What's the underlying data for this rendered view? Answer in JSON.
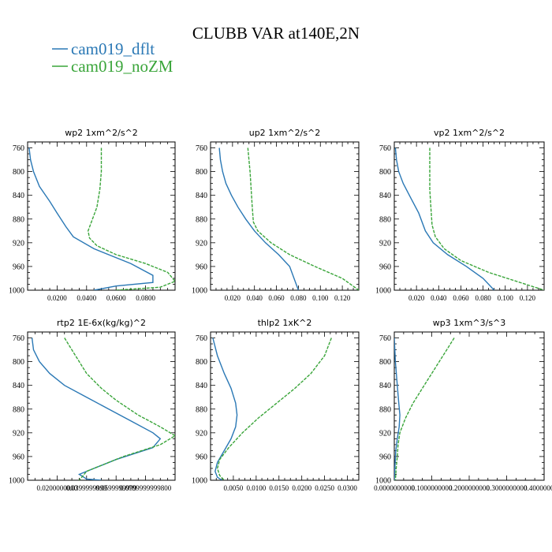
{
  "figure": {
    "title": "CLUBB VAR at140E,2N"
  },
  "legend": [
    {
      "label": "cam019_dflt",
      "color": "#2a78b5",
      "dash": false
    },
    {
      "label": "cam019_noZM",
      "color": "#3aa53a",
      "dash": true
    }
  ],
  "chart_data": [
    {
      "type": "line",
      "title": "wp2   1xm^2/s^2",
      "xlim": [
        0,
        0.1
      ],
      "ylim": [
        1000,
        750
      ],
      "xticks": [
        0.02,
        0.04,
        0.06,
        0.08
      ],
      "xtick_labels": [
        "0.0200",
        "0.0400",
        "0.0600",
        "0.0800"
      ],
      "yticks": [
        760,
        800,
        840,
        880,
        920,
        960,
        1000
      ],
      "series": [
        {
          "name": "cam019_dflt",
          "color": "#2a78b5",
          "dash": false,
          "x": [
            0.001,
            0.002,
            0.004,
            0.008,
            0.015,
            0.02,
            0.026,
            0.031,
            0.045,
            0.07,
            0.085,
            0.085,
            0.06,
            0.045
          ],
          "y": [
            760,
            780,
            800,
            825,
            850,
            870,
            893,
            910,
            930,
            955,
            975,
            987,
            993,
            1000
          ]
        },
        {
          "name": "cam019_noZM",
          "color": "#3aa53a",
          "dash": true,
          "x": [
            0.05,
            0.05,
            0.05,
            0.049,
            0.047,
            0.044,
            0.041,
            0.042,
            0.047,
            0.06,
            0.08,
            0.095,
            0.1,
            0.09,
            0.06
          ],
          "y": [
            760,
            780,
            800,
            830,
            860,
            880,
            900,
            912,
            925,
            940,
            955,
            970,
            985,
            995,
            1000
          ]
        }
      ]
    },
    {
      "type": "line",
      "title": "up2   1xm^2/s^2",
      "xlim": [
        0,
        0.135
      ],
      "ylim": [
        1000,
        750
      ],
      "xticks": [
        0.02,
        0.04,
        0.06,
        0.08,
        0.1,
        0.12
      ],
      "xtick_labels": [
        "0.020",
        "0.040",
        "0.060",
        "0.080",
        "0.100",
        "0.120"
      ],
      "yticks": [
        760,
        800,
        840,
        880,
        920,
        960,
        1000
      ],
      "series": [
        {
          "name": "cam019_dflt",
          "color": "#2a78b5",
          "dash": false,
          "x": [
            0.008,
            0.009,
            0.011,
            0.014,
            0.019,
            0.025,
            0.032,
            0.04,
            0.05,
            0.062,
            0.072,
            0.08
          ],
          "y": [
            760,
            780,
            800,
            820,
            840,
            860,
            880,
            900,
            920,
            940,
            960,
            1000
          ]
        },
        {
          "name": "cam019_noZM",
          "color": "#3aa53a",
          "dash": true,
          "x": [
            0.034,
            0.035,
            0.036,
            0.037,
            0.038,
            0.039,
            0.043,
            0.055,
            0.072,
            0.095,
            0.12,
            0.135
          ],
          "y": [
            760,
            780,
            800,
            830,
            860,
            885,
            900,
            920,
            940,
            960,
            980,
            1000
          ]
        }
      ]
    },
    {
      "type": "line",
      "title": "vp2   1xm^2/s^2",
      "xlim": [
        0,
        0.135
      ],
      "ylim": [
        1000,
        750
      ],
      "xticks": [
        0.02,
        0.04,
        0.06,
        0.08,
        0.1,
        0.12
      ],
      "xtick_labels": [
        "0.020",
        "0.040",
        "0.060",
        "0.080",
        "0.100",
        "0.120"
      ],
      "yticks": [
        760,
        800,
        840,
        880,
        920,
        960,
        1000
      ],
      "series": [
        {
          "name": "cam019_dflt",
          "color": "#2a78b5",
          "dash": false,
          "x": [
            0.001,
            0.002,
            0.004,
            0.008,
            0.015,
            0.022,
            0.028,
            0.035,
            0.048,
            0.065,
            0.08,
            0.09
          ],
          "y": [
            760,
            780,
            800,
            820,
            845,
            870,
            900,
            920,
            940,
            960,
            980,
            1000
          ]
        },
        {
          "name": "cam019_noZM",
          "color": "#3aa53a",
          "dash": true,
          "x": [
            0.032,
            0.032,
            0.032,
            0.032,
            0.033,
            0.034,
            0.037,
            0.045,
            0.06,
            0.085,
            0.11,
            0.135
          ],
          "y": [
            760,
            780,
            800,
            830,
            860,
            890,
            910,
            930,
            950,
            970,
            985,
            1000
          ]
        }
      ]
    },
    {
      "type": "line",
      "title": "rtp2   1E-6x(kg/kg)^2",
      "xlim": [
        0,
        0.1
      ],
      "ylim": [
        1000,
        750
      ],
      "xticks": [
        0.02,
        0.04,
        0.06,
        0.08
      ],
      "xtick_labels": [
        "0.0200000000",
        "0.0399999999",
        "0.0599999999",
        "0.0799999999800"
      ],
      "yticks": [
        760,
        800,
        840,
        880,
        920,
        960,
        1000
      ],
      "series": [
        {
          "name": "cam019_dflt",
          "color": "#2a78b5",
          "dash": false,
          "x": [
            0.003,
            0.004,
            0.008,
            0.015,
            0.025,
            0.04,
            0.055,
            0.07,
            0.085,
            0.09,
            0.085,
            0.06,
            0.035,
            0.04,
            0.05
          ],
          "y": [
            760,
            780,
            800,
            820,
            840,
            860,
            880,
            900,
            920,
            930,
            945,
            965,
            990,
            998,
            1000
          ]
        },
        {
          "name": "cam019_noZM",
          "color": "#3aa53a",
          "dash": true,
          "x": [
            0.025,
            0.03,
            0.035,
            0.04,
            0.05,
            0.06,
            0.075,
            0.09,
            0.1,
            0.09,
            0.065,
            0.04,
            0.035
          ],
          "y": [
            760,
            780,
            800,
            820,
            845,
            865,
            890,
            910,
            925,
            940,
            960,
            985,
            1000
          ]
        }
      ]
    },
    {
      "type": "line",
      "title": "thlp2   1xK^2",
      "xlim": [
        0,
        0.0325
      ],
      "ylim": [
        1000,
        750
      ],
      "xticks": [
        0.005,
        0.01,
        0.015,
        0.02,
        0.025,
        0.03
      ],
      "xtick_labels": [
        "0.0050",
        "0.0100",
        "0.0150",
        "0.0200",
        "0.0250",
        "0.0300"
      ],
      "yticks": [
        760,
        800,
        840,
        880,
        920,
        960,
        1000
      ],
      "series": [
        {
          "name": "cam019_dflt",
          "color": "#2a78b5",
          "dash": false,
          "x": [
            0.0005,
            0.0015,
            0.003,
            0.0045,
            0.0055,
            0.0058,
            0.0055,
            0.0045,
            0.003,
            0.0015,
            0.001,
            0.0015,
            0.0025
          ],
          "y": [
            760,
            790,
            820,
            845,
            870,
            890,
            910,
            930,
            950,
            970,
            985,
            995,
            1000
          ]
        },
        {
          "name": "cam019_noZM",
          "color": "#3aa53a",
          "dash": true,
          "x": [
            0.0265,
            0.025,
            0.022,
            0.0185,
            0.0145,
            0.0105,
            0.007,
            0.004,
            0.002,
            0.0015,
            0.002,
            0.003
          ],
          "y": [
            760,
            790,
            820,
            845,
            870,
            895,
            920,
            945,
            965,
            980,
            992,
            1000
          ]
        }
      ]
    },
    {
      "type": "line",
      "title": "wp3   1xm^3/s^3",
      "xlim": [
        0,
        0.4
      ],
      "ylim": [
        1000,
        750
      ],
      "xticks": [
        0.0,
        0.1,
        0.2,
        0.3,
        0.4
      ],
      "xtick_labels": [
        "0.0000000000",
        "0.1000000000",
        "0.2000000000",
        "0.3000000000",
        "0.4000000000"
      ],
      "yticks": [
        760,
        800,
        840,
        880,
        920,
        960,
        1000
      ],
      "series": [
        {
          "name": "cam019_dflt",
          "color": "#2a78b5",
          "dash": false,
          "x": [
            0.0,
            0.003,
            0.008,
            0.012,
            0.015,
            0.013,
            0.008,
            0.004,
            0.002,
            0.0
          ],
          "y": [
            760,
            800,
            840,
            870,
            890,
            910,
            930,
            950,
            975,
            1000
          ]
        },
        {
          "name": "cam019_noZM",
          "color": "#3aa53a",
          "dash": true,
          "x": [
            0.16,
            0.14,
            0.12,
            0.1,
            0.075,
            0.05,
            0.03,
            0.015,
            0.01,
            0.008,
            0.005,
            0.003
          ],
          "y": [
            760,
            780,
            800,
            820,
            845,
            870,
            895,
            920,
            940,
            960,
            980,
            1000
          ]
        }
      ]
    }
  ]
}
